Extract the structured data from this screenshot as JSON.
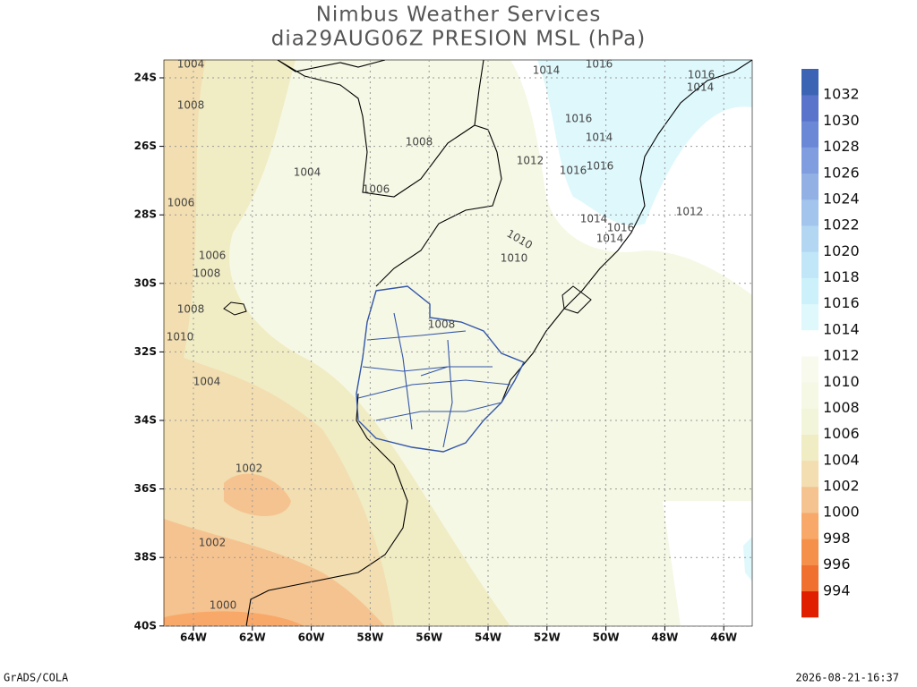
{
  "title": "Nimbus Weather Services",
  "subtitle": "dia29AUG06Z PRESION MSL (hPa)",
  "lat_labels": [
    "24S",
    "26S",
    "28S",
    "30S",
    "32S",
    "34S",
    "36S",
    "38S",
    "40S"
  ],
  "lon_labels": [
    "64W",
    "62W",
    "60W",
    "58W",
    "56W",
    "54W",
    "52W",
    "50W",
    "48W",
    "46W"
  ],
  "contour_labels": [
    1004,
    1008,
    1008,
    1004,
    1006,
    1006,
    1014,
    1016,
    1016,
    1014,
    1016,
    1014,
    1012,
    1016,
    1016,
    1014,
    1016,
    1014,
    1012,
    1010,
    1010,
    1006,
    1008,
    1008,
    1010,
    1008,
    1004,
    1002,
    1002,
    1000
  ],
  "colorbar": {
    "labels": [
      994,
      996,
      998,
      1000,
      1002,
      1004,
      1006,
      1008,
      1010,
      1012,
      1014,
      1016,
      1018,
      1020,
      1022,
      1024,
      1026,
      1028,
      1030,
      1032
    ],
    "colors": [
      "#e01e00",
      "#f07030",
      "#f5904a",
      "#f8a868",
      "#f5c390",
      "#f2deb0",
      "#f0ecc4",
      "#f3f5da",
      "#f5f8e4",
      "#f8faee",
      "#ffffff",
      "#def8fc",
      "#cdf1fa",
      "#c0e6f8",
      "#b3d6f2",
      "#a3c4ec",
      "#93b0e4",
      "#809de0",
      "#6b88d6",
      "#5a74cc",
      "#3c64b4"
    ]
  },
  "footer_left": "GrADS/COLA",
  "footer_right": "2026-08-21-16:37"
}
